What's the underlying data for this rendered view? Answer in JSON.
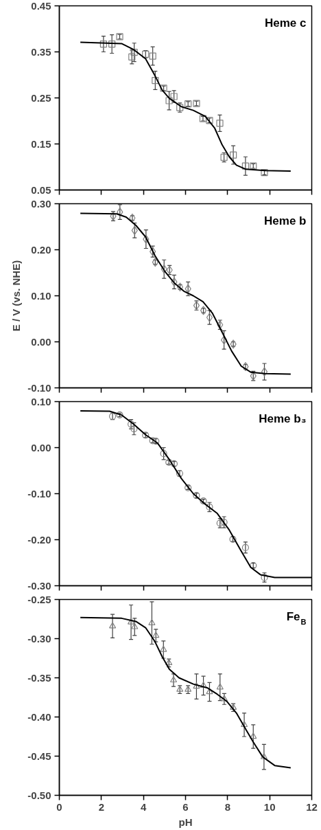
{
  "chart_data": [
    {
      "type": "scatter",
      "title": "Heme c",
      "xlim": [
        0,
        12
      ],
      "xticks": [
        0,
        2,
        4,
        6,
        8,
        10,
        12
      ],
      "ylim": [
        0.05,
        0.45
      ],
      "yticks": [
        {
          "value": 0.05,
          "label": "0.05"
        },
        {
          "value": 0.15,
          "label": "0.15"
        },
        {
          "value": 0.25,
          "label": "0.25"
        },
        {
          "value": 0.35,
          "label": "0.35"
        },
        {
          "value": 0.45,
          "label": "0.45"
        }
      ],
      "tick_labels": "y",
      "grid": false,
      "series": [
        {
          "marker": "square",
          "color": "#808080",
          "x": [
            2.1,
            2.5,
            2.87,
            3.45,
            3.56,
            4.1,
            4.44,
            4.56,
            4.96,
            5.22,
            5.45,
            5.73,
            6.12,
            6.52,
            6.83,
            7.14,
            7.63,
            7.83,
            8.27,
            8.85,
            9.22,
            9.75
          ],
          "values": [
            0.367,
            0.367,
            0.383,
            0.339,
            0.349,
            0.345,
            0.341,
            0.288,
            0.271,
            0.244,
            0.253,
            0.229,
            0.237,
            0.238,
            0.205,
            0.201,
            0.195,
            0.121,
            0.126,
            0.102,
            0.102,
            0.088
          ],
          "errors": [
            0.017,
            0.02,
            0.005,
            0.015,
            0.02,
            0.008,
            0.02,
            0.02,
            0.005,
            0.02,
            0.013,
            0.01,
            0.005,
            0.005,
            0.005,
            0.005,
            0.018,
            0.01,
            0.02,
            0.02,
            0.005,
            0.005
          ]
        },
        {
          "type": "line",
          "color": "#000000",
          "x": [
            1.0,
            2.96,
            3.53,
            4.1,
            4.55,
            4.89,
            5.23,
            5.8,
            6.37,
            6.94,
            7.39,
            7.74,
            8.08,
            8.42,
            8.87,
            9.78,
            11.0
          ],
          "values": [
            0.371,
            0.368,
            0.355,
            0.335,
            0.298,
            0.267,
            0.249,
            0.231,
            0.223,
            0.21,
            0.184,
            0.148,
            0.122,
            0.104,
            0.095,
            0.092,
            0.091
          ]
        }
      ]
    },
    {
      "type": "scatter",
      "title": "Heme b",
      "ylabel": "E / V (vs. NHE)",
      "xlim": [
        0,
        12
      ],
      "xticks": [
        0,
        2,
        4,
        6,
        8,
        10,
        12
      ],
      "ylim": [
        -0.1,
        0.3
      ],
      "yticks": [
        {
          "value": -0.1,
          "label": "-0.10"
        },
        {
          "value": 0.0,
          "label": "0.00"
        },
        {
          "value": 0.1,
          "label": "0.10"
        },
        {
          "value": 0.2,
          "label": "0.20"
        },
        {
          "value": 0.3,
          "label": "0.30"
        }
      ],
      "tick_labels": "y",
      "grid": false,
      "series": [
        {
          "marker": "diamond",
          "color": "#808080",
          "x": [
            2.56,
            2.88,
            3.47,
            3.58,
            4.12,
            4.44,
            4.56,
            4.98,
            5.24,
            5.46,
            5.74,
            6.12,
            6.52,
            6.85,
            7.14,
            7.64,
            7.83,
            8.27,
            8.85,
            9.22,
            9.75
          ],
          "values": [
            0.273,
            0.282,
            0.269,
            0.242,
            0.223,
            0.196,
            0.173,
            0.158,
            0.156,
            0.13,
            0.119,
            0.115,
            0.079,
            0.068,
            0.053,
            0.037,
            0.004,
            -0.005,
            -0.054,
            -0.074,
            -0.065
          ],
          "errors": [
            0.01,
            0.016,
            0.005,
            0.016,
            0.02,
            0.012,
            0.005,
            0.02,
            0.01,
            0.015,
            0.005,
            0.015,
            0.01,
            0.005,
            0.015,
            0.01,
            0.02,
            0.005,
            0.005,
            0.01,
            0.018
          ]
        },
        {
          "type": "line",
          "color": "#000000",
          "x": [
            1.0,
            2.73,
            3.18,
            3.64,
            4.1,
            4.55,
            5.0,
            5.46,
            5.92,
            6.37,
            6.83,
            7.28,
            7.74,
            8.19,
            8.65,
            9.1,
            9.78,
            11.0
          ],
          "values": [
            0.279,
            0.278,
            0.271,
            0.253,
            0.228,
            0.187,
            0.154,
            0.128,
            0.11,
            0.1,
            0.087,
            0.062,
            0.021,
            -0.02,
            -0.053,
            -0.066,
            -0.069,
            -0.07
          ]
        }
      ]
    },
    {
      "type": "scatter",
      "title": "Heme b₃",
      "xlim": [
        0,
        12
      ],
      "xticks": [
        0,
        2,
        4,
        6,
        8,
        10,
        12
      ],
      "ylim": [
        -0.3,
        0.1
      ],
      "yticks": [
        {
          "value": -0.3,
          "label": "-0.30"
        },
        {
          "value": -0.2,
          "label": "-0.20"
        },
        {
          "value": -0.1,
          "label": "-0.10"
        },
        {
          "value": 0.0,
          "label": "0.00"
        },
        {
          "value": 0.1,
          "label": "0.10"
        }
      ],
      "tick_labels": "y",
      "grid": false,
      "series": [
        {
          "marker": "circle",
          "color": "#808080",
          "x": [
            2.53,
            2.87,
            3.41,
            3.55,
            4.1,
            4.44,
            4.59,
            4.96,
            5.21,
            5.46,
            5.72,
            6.12,
            6.52,
            6.85,
            7.14,
            7.64,
            7.83,
            8.25,
            8.85,
            9.22,
            9.75
          ],
          "values": [
            0.068,
            0.071,
            0.051,
            0.041,
            0.027,
            0.015,
            0.014,
            -0.013,
            -0.032,
            -0.035,
            -0.056,
            -0.087,
            -0.104,
            -0.116,
            -0.129,
            -0.164,
            -0.162,
            -0.199,
            -0.217,
            -0.256,
            -0.282
          ],
          "errors": [
            0.007,
            0.004,
            0.01,
            0.013,
            0.005,
            0.004,
            0.005,
            0.013,
            0.004,
            0.005,
            0.006,
            0.004,
            0.005,
            0.004,
            0.01,
            0.01,
            0.012,
            0.005,
            0.012,
            0.005,
            0.01
          ]
        },
        {
          "type": "line",
          "color": "#000000",
          "x": [
            1.0,
            2.39,
            2.96,
            3.53,
            4.1,
            4.67,
            5.23,
            5.8,
            6.37,
            6.94,
            7.51,
            8.08,
            8.65,
            9.1,
            9.56,
            10.24,
            12.0
          ],
          "values": [
            0.08,
            0.079,
            0.071,
            0.051,
            0.028,
            0.01,
            -0.026,
            -0.067,
            -0.1,
            -0.123,
            -0.143,
            -0.179,
            -0.225,
            -0.26,
            -0.276,
            -0.282,
            -0.282
          ]
        }
      ]
    },
    {
      "type": "scatter",
      "title": "Fe$_{B}$",
      "xlabel": "pH",
      "xlim": [
        0,
        12
      ],
      "xticks": [
        0,
        2,
        4,
        6,
        8,
        10,
        12
      ],
      "ylim": [
        -0.5,
        -0.25
      ],
      "yticks": [
        {
          "value": -0.5,
          "label": "-0.50"
        },
        {
          "value": -0.45,
          "label": "-0.45"
        },
        {
          "value": -0.4,
          "label": "-0.40"
        },
        {
          "value": -0.35,
          "label": "-0.35"
        },
        {
          "value": -0.3,
          "label": "-0.30"
        },
        {
          "value": -0.25,
          "label": "-0.25"
        }
      ],
      "grid": false,
      "series": [
        {
          "marker": "triangle",
          "color": "#808080",
          "x": [
            2.53,
            3.41,
            3.58,
            4.4,
            4.59,
            4.95,
            5.21,
            5.43,
            5.73,
            6.12,
            6.52,
            6.85,
            7.14,
            7.64,
            7.84,
            8.27,
            8.79,
            9.22,
            9.73
          ],
          "values": [
            -0.284,
            -0.279,
            -0.285,
            -0.28,
            -0.296,
            -0.314,
            -0.331,
            -0.353,
            -0.365,
            -0.365,
            -0.361,
            -0.36,
            -0.368,
            -0.362,
            -0.377,
            -0.388,
            -0.41,
            -0.425,
            -0.451
          ],
          "errors": [
            0.015,
            0.022,
            0.011,
            0.027,
            0.008,
            0.011,
            0.005,
            0.008,
            0.005,
            0.005,
            0.016,
            0.012,
            0.012,
            0.017,
            0.007,
            0.005,
            0.015,
            0.015,
            0.016
          ]
        },
        {
          "type": "line",
          "color": "#000000",
          "x": [
            1.0,
            2.96,
            3.64,
            4.1,
            4.55,
            4.89,
            5.23,
            5.69,
            6.37,
            7.05,
            7.51,
            7.96,
            8.42,
            8.87,
            9.22,
            9.67,
            10.24,
            11.0
          ],
          "values": [
            -0.273,
            -0.274,
            -0.278,
            -0.286,
            -0.304,
            -0.323,
            -0.339,
            -0.35,
            -0.358,
            -0.363,
            -0.371,
            -0.38,
            -0.395,
            -0.416,
            -0.432,
            -0.451,
            -0.462,
            -0.465
          ]
        }
      ]
    }
  ]
}
